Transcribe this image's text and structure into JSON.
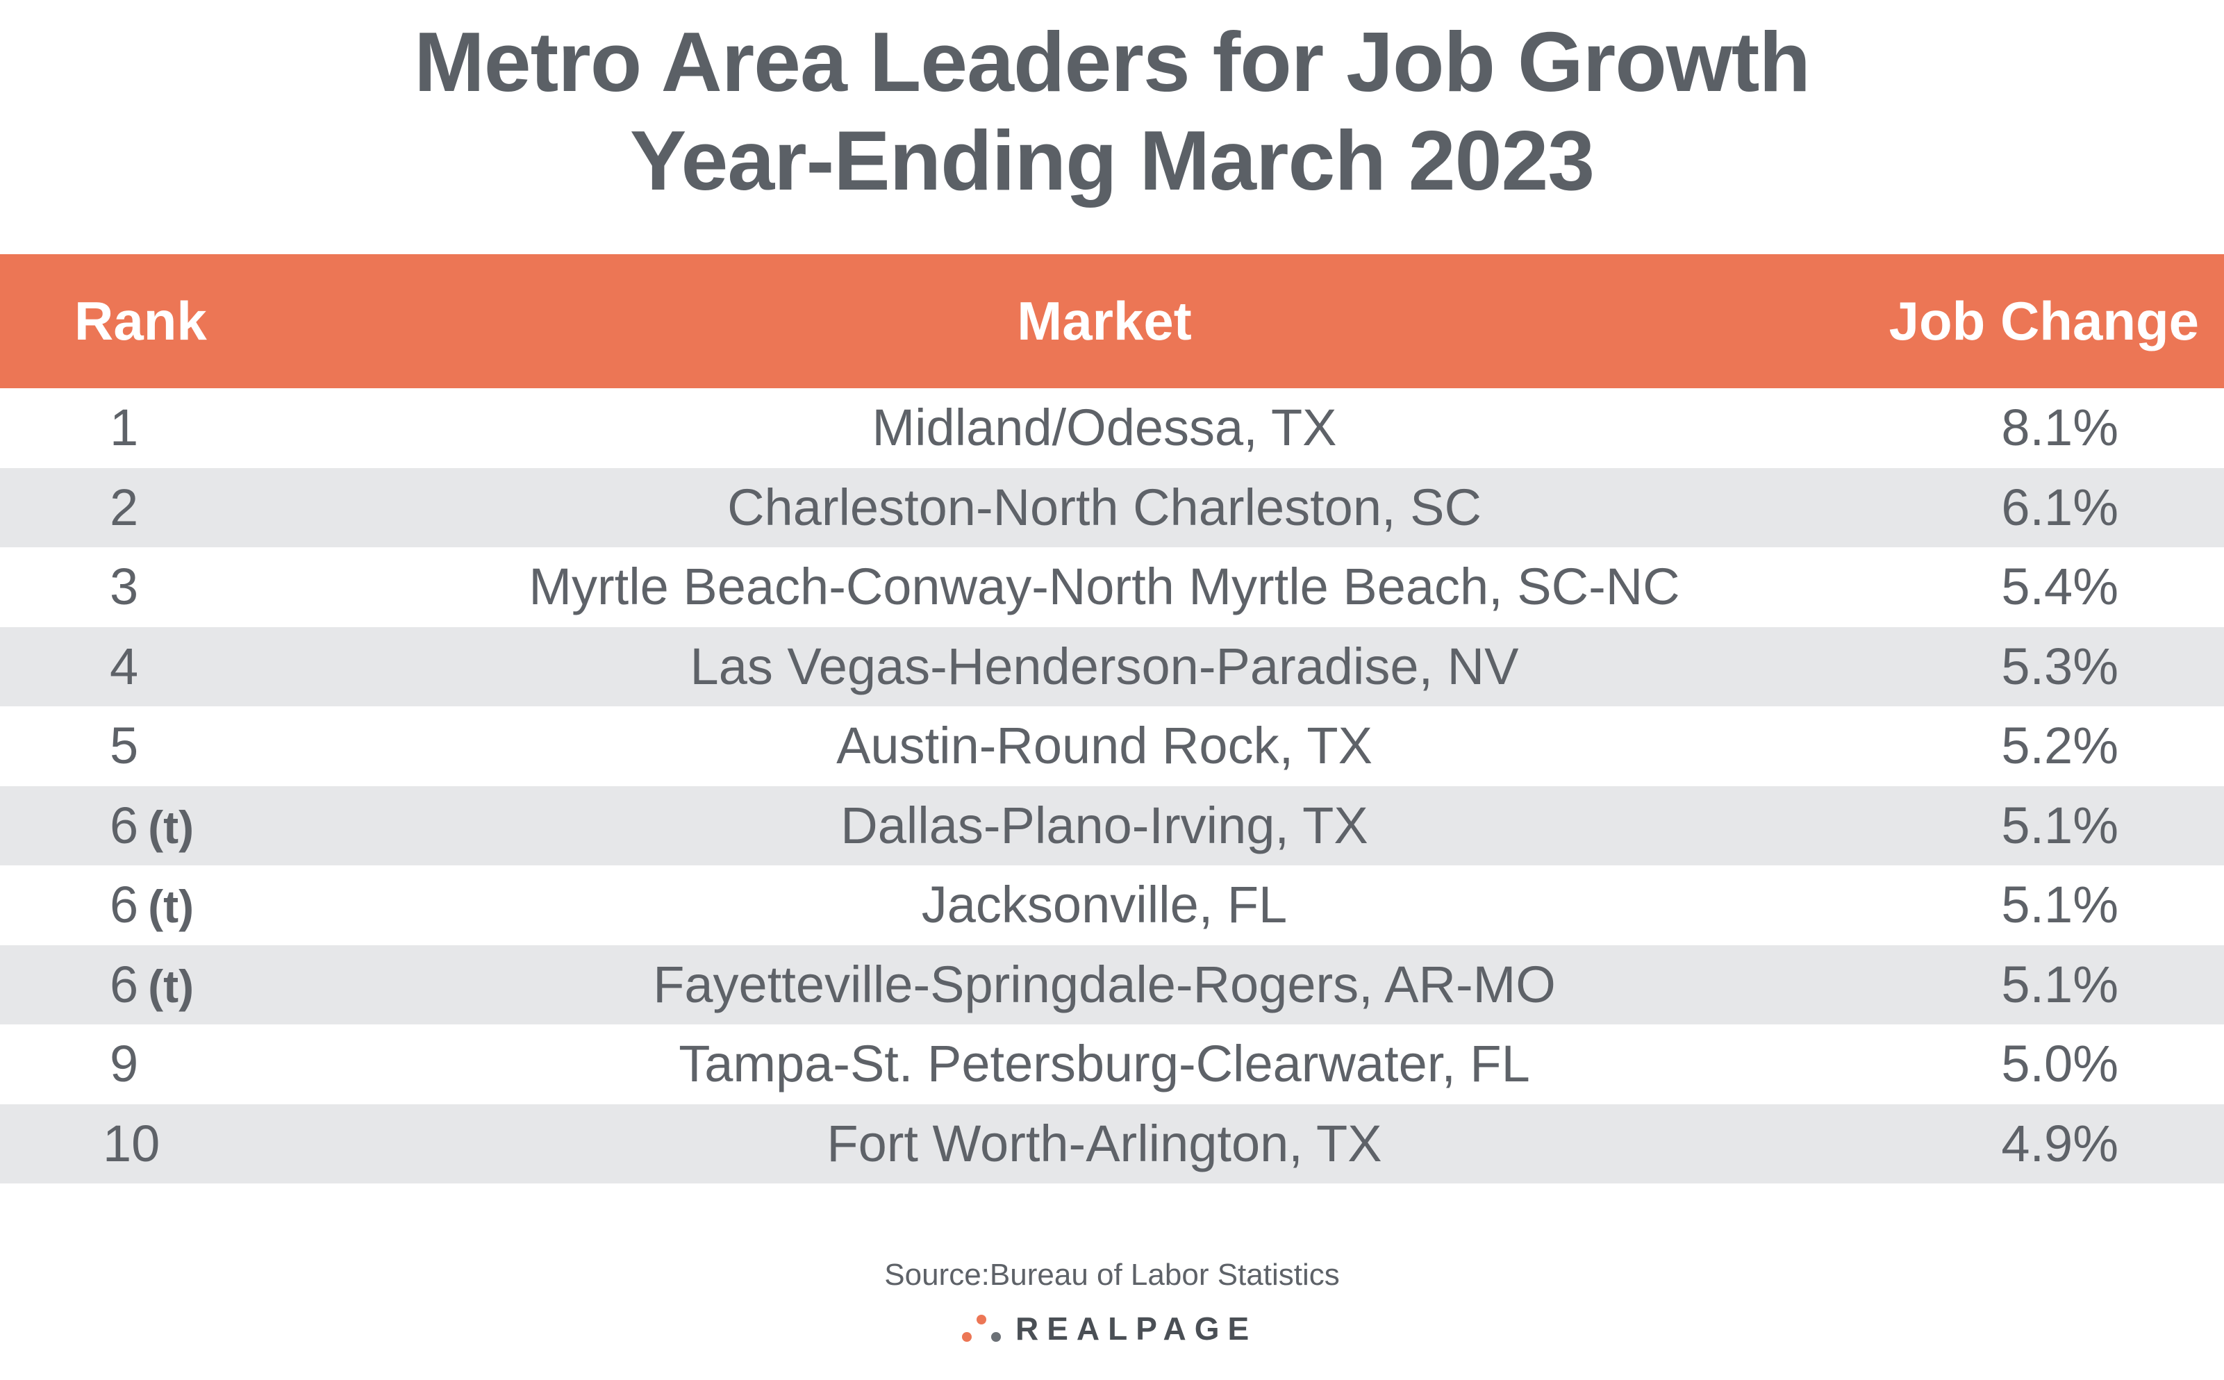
{
  "title_line1": "Metro Area Leaders for Job Growth",
  "title_line2": "Year-Ending March 2023",
  "chart_data": {
    "type": "table",
    "title": "Metro Area Leaders for Job Growth Year-Ending March 2023",
    "columns": [
      "Rank",
      "Market",
      "Job Change"
    ],
    "rows": [
      {
        "rank": "1",
        "tie": "",
        "market": "Midland/Odessa, TX",
        "change": "8.1%"
      },
      {
        "rank": "2",
        "tie": "",
        "market": "Charleston-North Charleston, SC",
        "change": "6.1%"
      },
      {
        "rank": "3",
        "tie": "",
        "market": "Myrtle Beach-Conway-North Myrtle Beach, SC-NC",
        "change": "5.4%"
      },
      {
        "rank": "4",
        "tie": "",
        "market": "Las Vegas-Henderson-Paradise, NV",
        "change": "5.3%"
      },
      {
        "rank": "5",
        "tie": "",
        "market": "Austin-Round Rock, TX",
        "change": "5.2%"
      },
      {
        "rank": "6",
        "tie": "(t)",
        "market": "Dallas-Plano-Irving, TX",
        "change": "5.1%"
      },
      {
        "rank": "6",
        "tie": "(t)",
        "market": "Jacksonville, FL",
        "change": "5.1%"
      },
      {
        "rank": "6",
        "tie": "(t)",
        "market": "Fayetteville-Springdale-Rogers, AR-MO",
        "change": "5.1%"
      },
      {
        "rank": "9",
        "tie": "",
        "market": "Tampa-St. Petersburg-Clearwater, FL",
        "change": "5.0%"
      },
      {
        "rank": "10",
        "tie": "",
        "market": "Fort Worth-Arlington, TX",
        "change": "4.9%"
      }
    ]
  },
  "source": "Source:Bureau of Labor Statistics",
  "logo": {
    "text": "REALPAGE",
    "icon": "three-dots-logo-icon",
    "colors": {
      "dot_orange": "#ec7655",
      "dot_gray": "#6b7076"
    }
  },
  "colors": {
    "header_bg": "#ec7655",
    "row_shade": "#e6e7e9",
    "text": "#5e6268",
    "title": "#5b6066"
  }
}
